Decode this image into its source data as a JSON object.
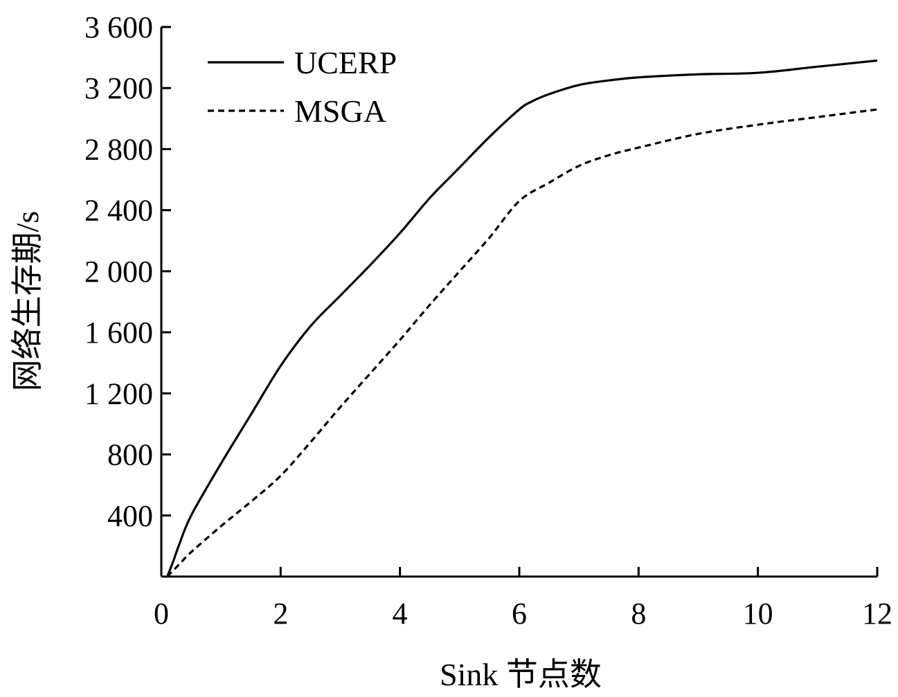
{
  "chart_data": {
    "type": "line",
    "title": "",
    "xlabel": "Sink 节点数",
    "ylabel": "网络生存期/s",
    "xlim": [
      0,
      12
    ],
    "ylim": [
      0,
      3600
    ],
    "x_ticks": [
      0,
      2,
      4,
      6,
      8,
      10,
      12
    ],
    "x_tick_labels": [
      "0",
      "2",
      "4",
      "6",
      "8",
      "10",
      "12"
    ],
    "y_ticks": [
      400,
      800,
      1200,
      1600,
      2000,
      2400,
      2800,
      3200,
      3600
    ],
    "y_tick_labels": [
      "400",
      "800",
      "1 200",
      "1 600",
      "2 000",
      "2 400",
      "2 800",
      "3 200",
      "3 600"
    ],
    "grid": false,
    "legend": {
      "placement": "top-left"
    },
    "series": [
      {
        "name": "UCERP",
        "style": "solid",
        "x": [
          0.1,
          0.2,
          0.3,
          0.5,
          1.0,
          1.5,
          2.0,
          2.5,
          3.0,
          3.5,
          4.0,
          4.5,
          5.0,
          5.5,
          6.0,
          6.2,
          6.5,
          7.0,
          7.5,
          8.0,
          9.0,
          10.0,
          11.0,
          12.0
        ],
        "y": [
          0,
          100,
          210,
          400,
          740,
          1060,
          1380,
          1640,
          1840,
          2040,
          2250,
          2480,
          2680,
          2880,
          3060,
          3110,
          3160,
          3220,
          3250,
          3270,
          3290,
          3300,
          3340,
          3380
        ]
      },
      {
        "name": "MSGA",
        "style": "dashed",
        "x": [
          0.1,
          0.3,
          0.5,
          1.0,
          1.5,
          2.0,
          2.5,
          3.0,
          3.5,
          4.0,
          4.5,
          5.0,
          5.5,
          6.0,
          6.5,
          7.0,
          7.5,
          8.0,
          9.0,
          10.0,
          11.0,
          12.0
        ],
        "y": [
          0,
          80,
          160,
          330,
          490,
          660,
          880,
          1110,
          1330,
          1550,
          1780,
          2000,
          2220,
          2460,
          2580,
          2690,
          2760,
          2810,
          2900,
          2960,
          3010,
          3060
        ]
      }
    ]
  }
}
